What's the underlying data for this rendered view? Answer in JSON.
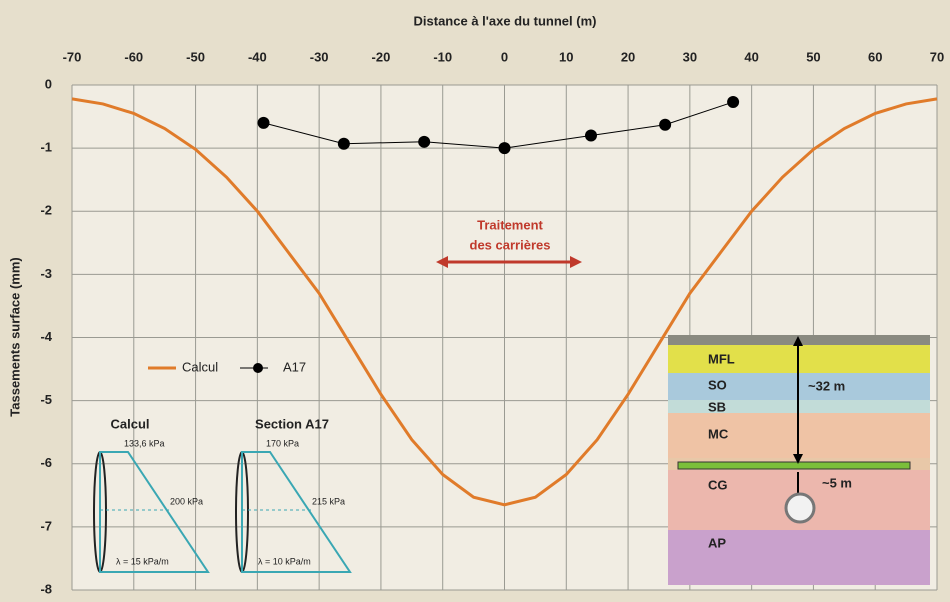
{
  "chart_data": {
    "type": "line",
    "x_label": "Distance à l'axe du tunnel (m)",
    "y_label": "Tassements surface (mm)",
    "xlim": [
      -70,
      70
    ],
    "xticks": [
      -70,
      -60,
      -50,
      -40,
      -30,
      -20,
      -10,
      0,
      10,
      20,
      30,
      40,
      50,
      60,
      70
    ],
    "ylim": [
      -8,
      0
    ],
    "yticks": [
      0,
      -1,
      -2,
      -3,
      -4,
      -5,
      -6,
      -7,
      -8
    ],
    "grid": true,
    "series": [
      {
        "name": "Calcul",
        "color": "#e07b2a",
        "marker": false,
        "x": [
          -70,
          -65,
          -60,
          -55,
          -50,
          -45,
          -40,
          -35,
          -30,
          -25,
          -20,
          -15,
          -10,
          -5,
          0,
          5,
          10,
          15,
          20,
          25,
          30,
          35,
          40,
          45,
          50,
          55,
          60,
          65,
          70
        ],
        "values": [
          -0.22,
          -0.3,
          -0.45,
          -0.69,
          -1.02,
          -1.46,
          -2.0,
          -2.65,
          -3.3,
          -4.1,
          -4.9,
          -5.62,
          -6.17,
          -6.53,
          -6.65,
          -6.53,
          -6.17,
          -5.62,
          -4.9,
          -4.1,
          -3.3,
          -2.65,
          -2.0,
          -1.46,
          -1.02,
          -0.69,
          -0.45,
          -0.3,
          -0.22
        ]
      },
      {
        "name": "A17",
        "color": "#000000",
        "marker": true,
        "x": [
          -39,
          -26,
          -13,
          0,
          14,
          26,
          37
        ],
        "values": [
          -0.6,
          -0.93,
          -0.9,
          -1.0,
          -0.8,
          -0.63,
          -0.27
        ]
      }
    ],
    "annotation": {
      "text": [
        "Traitement",
        "des carrières"
      ],
      "color": "#c0392b"
    },
    "insets": [
      {
        "title": "Calcul",
        "top_load": "133,6 kPa",
        "mid_load": "200 kPa",
        "gradient": "λ = 15 kPa/m"
      },
      {
        "title": "Section A17",
        "top_load": "170 kPa",
        "mid_load": "215 kPa",
        "gradient": "λ = 10 kPa/m"
      }
    ],
    "soil_profile": {
      "layers": [
        {
          "name": "MFL",
          "color": "#e2e04a"
        },
        {
          "name": "SO",
          "color": "#a9c9dc"
        },
        {
          "name": "SB",
          "color": "#c2dcd8"
        },
        {
          "name": "MC",
          "color": "#efc3a5"
        },
        {
          "name": "CG",
          "color": "#ecb7ad"
        },
        {
          "name": "AP",
          "color": "#c9a1cc"
        }
      ],
      "depth_labels": [
        "~32 m",
        "~5 m"
      ]
    }
  }
}
